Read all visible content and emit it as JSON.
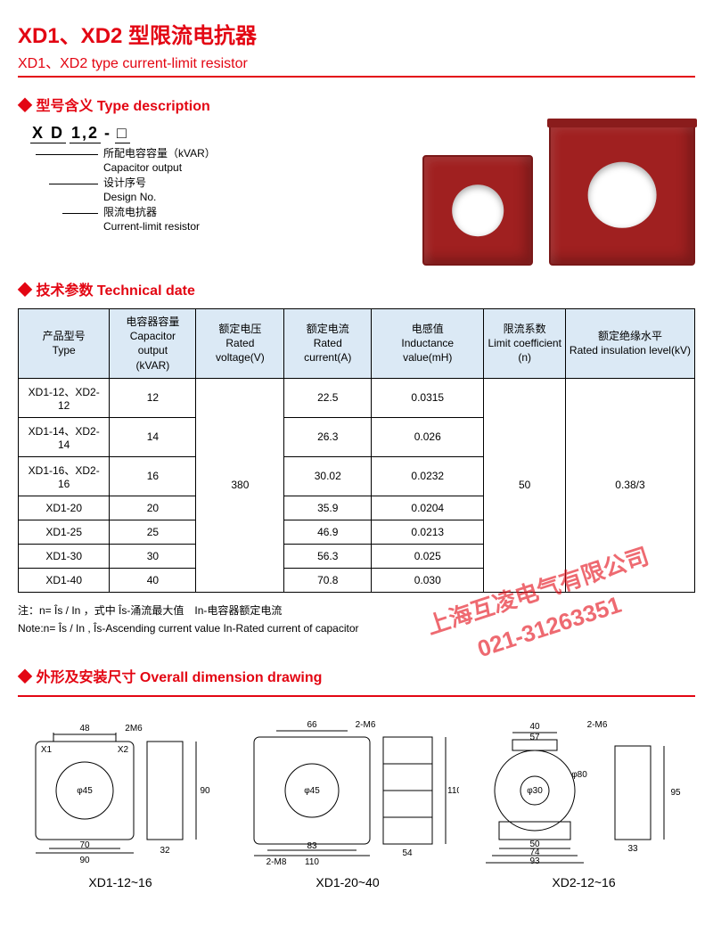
{
  "title_cn": "XD1、XD2 型限流电抗器",
  "title_en": "XD1、XD2  type current-limit resistor",
  "sections": {
    "type_desc": "型号含义 Type description",
    "tech": "技术参数 Technical date",
    "dim": "外形及安装尺寸 Overall dimension drawing"
  },
  "type": {
    "code_segments": [
      "X D",
      "1,2",
      "-",
      "□"
    ],
    "lines": [
      {
        "cn": "所配电容容量（kVAR）",
        "en": "Capacitor output"
      },
      {
        "cn": "设计序号",
        "en": "Design No."
      },
      {
        "cn": "限流电抗器",
        "en": "Current-limit resistor"
      }
    ]
  },
  "table": {
    "headers": [
      {
        "cn": "产品型号",
        "en": "Type"
      },
      {
        "cn": "电容器容量",
        "en": "Capacitor output",
        "unit": "(kVAR)"
      },
      {
        "cn": "额定电压",
        "en": "Rated voltage(V)"
      },
      {
        "cn": "额定电流",
        "en": "Rated current(A)"
      },
      {
        "cn": "电感值",
        "en": "Inductance value(mH)"
      },
      {
        "cn": "限流系数",
        "en": "Limit coefficient",
        "unit": "(n)"
      },
      {
        "cn": "额定绝缘水平",
        "en": "Rated insulation level(kV)"
      }
    ],
    "rows": [
      {
        "type": "XD1-12、XD2-12",
        "cap": "12",
        "cur": "22.5",
        "ind": "0.0315"
      },
      {
        "type": "XD1-14、XD2-14",
        "cap": "14",
        "cur": "26.3",
        "ind": "0.026"
      },
      {
        "type": "XD1-16、XD2-16",
        "cap": "16",
        "cur": "30.02",
        "ind": "0.0232"
      },
      {
        "type": "XD1-20",
        "cap": "20",
        "cur": "35.9",
        "ind": "0.0204"
      },
      {
        "type": "XD1-25",
        "cap": "25",
        "cur": "46.9",
        "ind": "0.0213"
      },
      {
        "type": "XD1-30",
        "cap": "30",
        "cur": "56.3",
        "ind": "0.025"
      },
      {
        "type": "XD1-40",
        "cap": "40",
        "cur": "70.8",
        "ind": "0.030"
      }
    ],
    "rated_voltage": "380",
    "coefficient": "50",
    "insulation": "0.38/3"
  },
  "note_cn": "注：n= Îs / In ，式中 Îs-涌流最大值　In-电容器额定电流",
  "note_en": "Note:n= Îs / In , Îs-Ascending current value In-Rated current of capacitor",
  "watermark1": "上海互凌电气有限公司",
  "watermark2": "021-31263351",
  "dims": {
    "a": {
      "label": "XD1-12~16",
      "vals": {
        "w_top": "48",
        "thread_top": "2M6",
        "x1": "X1",
        "x2": "X2",
        "dia": "φ45",
        "h": "90",
        "inner_w": "70",
        "outer_w": "90",
        "side": "32"
      }
    },
    "b": {
      "label": "XD1-20~40",
      "vals": {
        "w_top": "66",
        "thread_top": "2-M6",
        "dia": "φ45",
        "h": "110",
        "inner_w": "83",
        "outer_w": "110",
        "thread_bot": "2-M8",
        "side": "54"
      }
    },
    "c": {
      "label": "XD2-12~16",
      "vals": {
        "thread_top": "2-M6",
        "gap": "40",
        "top_w": "57",
        "d_in": "φ30",
        "d_out": "φ80",
        "h": "95",
        "w1": "50",
        "w2": "74",
        "w3": "93",
        "side": "33"
      }
    }
  },
  "colors": {
    "accent": "#e30613",
    "table_header_bg": "#dbe9f5",
    "product_body": "#a02020"
  }
}
